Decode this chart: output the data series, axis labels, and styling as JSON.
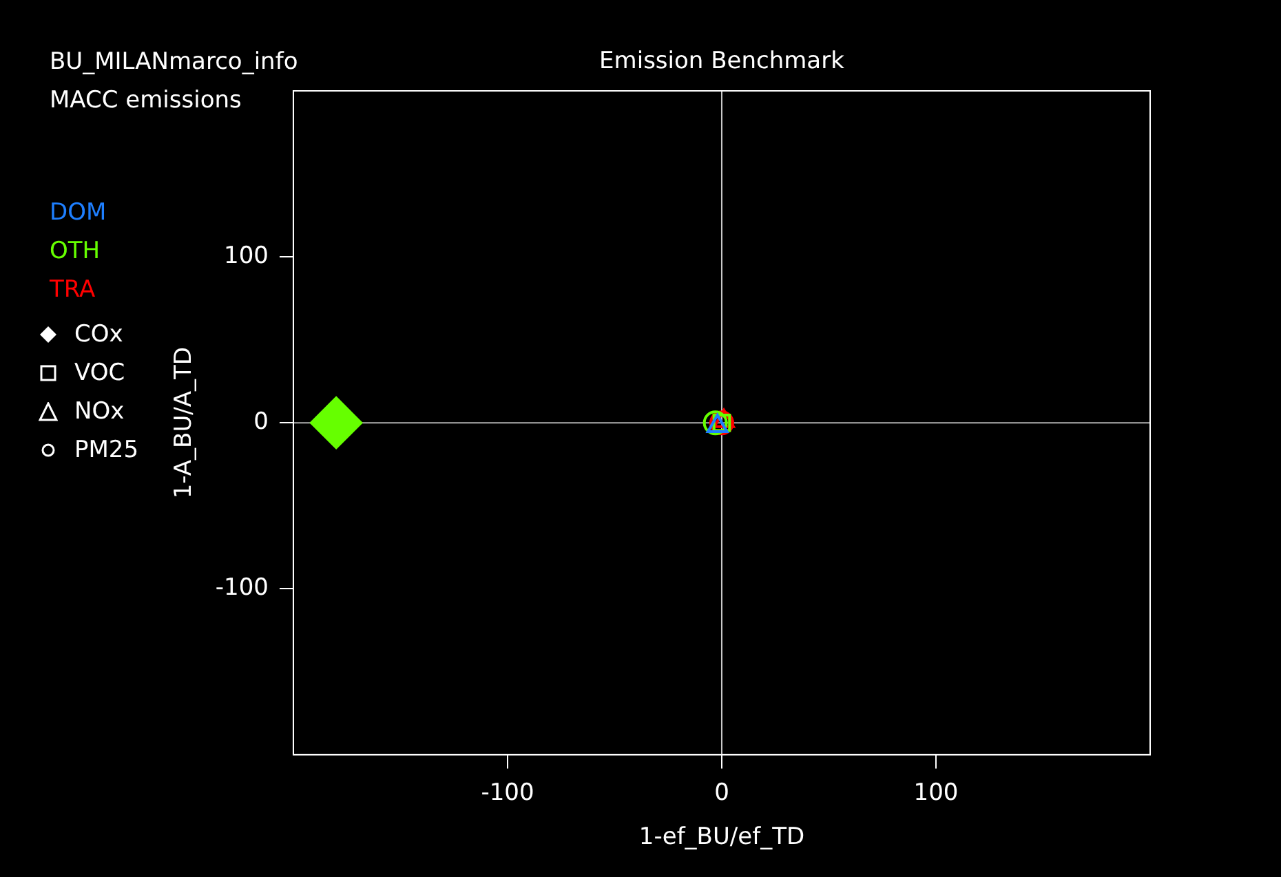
{
  "chart_data": {
    "type": "scatter",
    "title": "Emission Benchmark",
    "xlabel": "1-ef_BU/ef_TD",
    "ylabel": "1-A_BU/A_TD",
    "annotations": [
      "BU_MILANmarco_info",
      "MACC emissions",
      "COx",
      "VOC",
      "NOx",
      "PM25"
    ],
    "xlim": [
      -200,
      200
    ],
    "ylim": [
      -200,
      200
    ],
    "xticks": [
      -100,
      0,
      100
    ],
    "yticks": [
      -100,
      0,
      100
    ],
    "ref_lines": [
      {
        "axis": "x",
        "value": 0,
        "color": "#c8c8c8"
      },
      {
        "axis": "y",
        "value": 0,
        "color": "#b0b0b0"
      }
    ],
    "legend": "left",
    "series": [
      {
        "name": "DOM",
        "color": "#1e7fff",
        "marker": "triangle",
        "x": [
          -2
        ],
        "values": [
          -2
        ]
      },
      {
        "name": "OTH",
        "color": "#66ff00",
        "marker": "diamond",
        "x": [
          -180
        ],
        "values": [
          0
        ]
      },
      {
        "color": "#66ff00",
        "marker": "square",
        "x": [
          0
        ],
        "values": [
          0
        ]
      },
      {
        "color": "#66ff00",
        "marker": "circle",
        "x": [
          -3
        ],
        "values": [
          0
        ]
      },
      {
        "name": "TRA",
        "color": "#ff0000",
        "marker": "square",
        "x": [
          0
        ],
        "values": [
          0
        ]
      },
      {
        "color": "#ff0000",
        "marker": "triangle",
        "x": [
          1
        ],
        "values": [
          1
        ]
      },
      {
        "color": "#ff0000",
        "marker": "circle",
        "x": [
          0
        ],
        "values": [
          0
        ]
      }
    ]
  }
}
